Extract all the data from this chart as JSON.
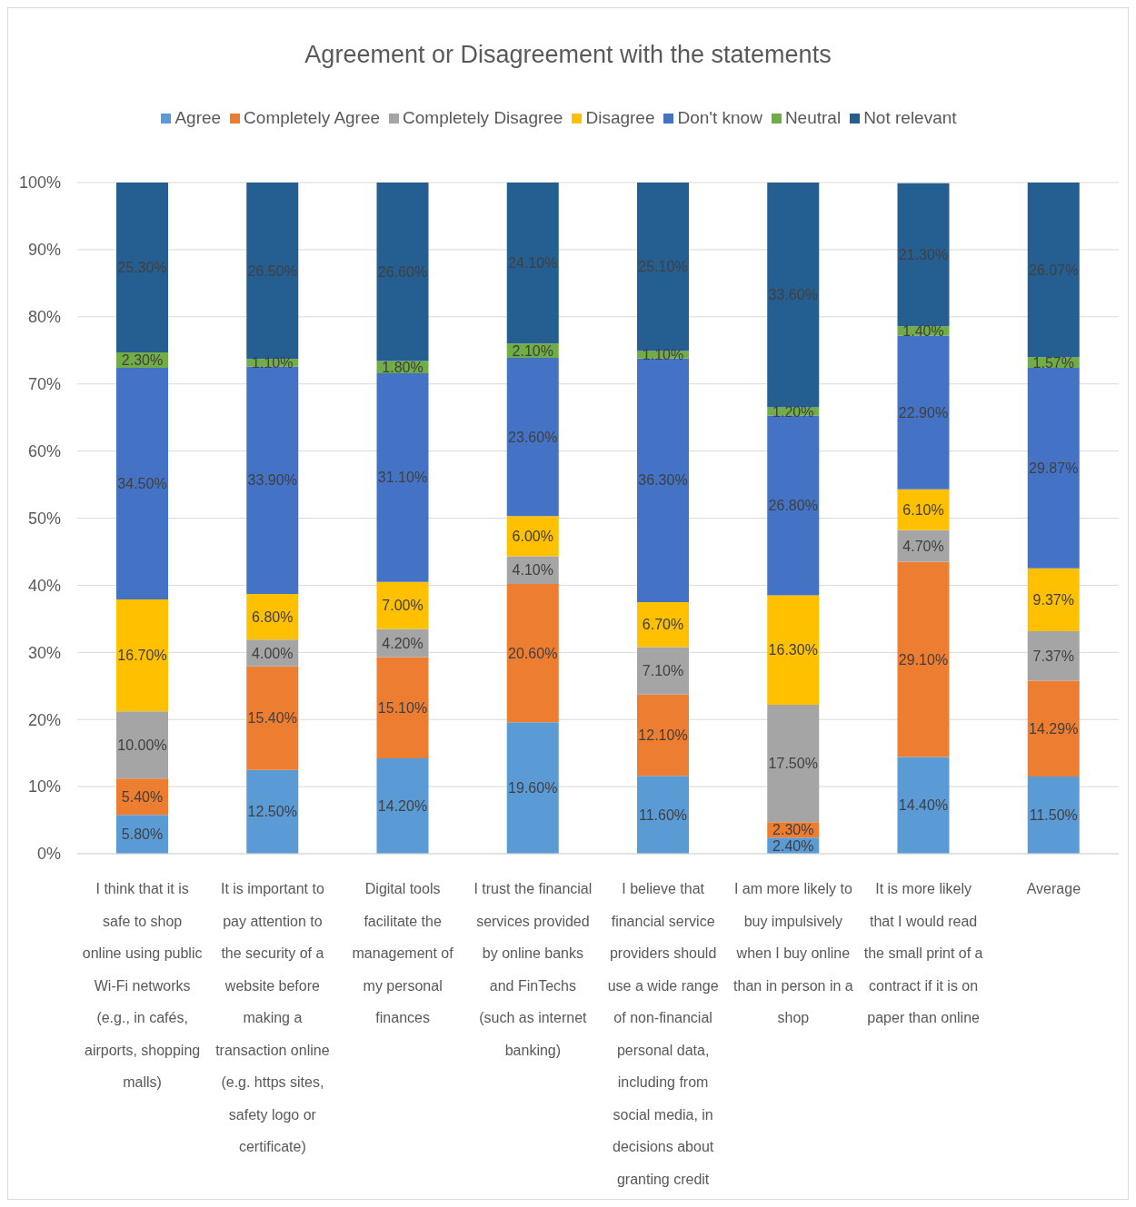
{
  "chart_data": {
    "type": "bar",
    "title": "Agreement or Disagreement with the statements",
    "categories": [
      "I think that it is safe to shop online using public Wi-Fi networks (e.g., in cafés, airports, shopping malls)",
      "It is important to pay attention to the security of a website before making a transaction online (e.g. https sites, safety logo or certificate)",
      "Digital tools facilitate the management of my personal finances",
      "I trust the financial services provided by online banks and FinTechs (such as internet banking)",
      "I believe that financial service providers should use a wide range of non-financial personal data, including from social media, in decisions about granting credit",
      "I am more likely to buy impulsively when I buy online than in person in a shop",
      "It is more likely that I would read the small print of a contract if it is on paper than online",
      "Average"
    ],
    "series": [
      {
        "name": "Agree",
        "color": "#5b9bd5",
        "values": [
          5.8,
          12.5,
          14.2,
          19.6,
          11.6,
          2.4,
          14.4,
          11.5
        ],
        "value_labels": [
          "5.80%",
          "12.50%",
          "14.20%",
          "19.60%",
          "11.60%",
          "2.40%",
          "14.40%",
          "11.50%"
        ]
      },
      {
        "name": "Completely Agree",
        "color": "#ed7d31",
        "values": [
          5.4,
          15.4,
          15.1,
          20.6,
          12.1,
          2.3,
          29.1,
          14.29
        ],
        "value_labels": [
          "5.40%",
          "15.40%",
          "15.10%",
          "20.60%",
          "12.10%",
          "2.30%",
          "29.10%",
          "14.29%"
        ]
      },
      {
        "name": "Completely Disagree",
        "color": "#a5a5a5",
        "values": [
          10.0,
          4.0,
          4.2,
          4.1,
          7.1,
          17.5,
          4.7,
          7.37
        ],
        "value_labels": [
          "10.00%",
          "4.00%",
          "4.20%",
          "4.10%",
          "7.10%",
          "17.50%",
          "4.70%",
          "7.37%"
        ]
      },
      {
        "name": "Disagree",
        "color": "#ffc000",
        "values": [
          16.7,
          6.8,
          7.0,
          6.0,
          6.7,
          16.3,
          6.1,
          9.37
        ],
        "value_labels": [
          "16.70%",
          "6.80%",
          "7.00%",
          "6.00%",
          "6.70%",
          "16.30%",
          "6.10%",
          "9.37%"
        ]
      },
      {
        "name": "Don't know",
        "color": "#4472c4",
        "values": [
          34.5,
          33.9,
          31.1,
          23.6,
          36.3,
          26.8,
          22.9,
          29.87
        ],
        "value_labels": [
          "34.50%",
          "33.90%",
          "31.10%",
          "23.60%",
          "36.30%",
          "26.80%",
          "22.90%",
          "29.87%"
        ]
      },
      {
        "name": "Neutral",
        "color": "#70ad47",
        "values": [
          2.3,
          1.1,
          1.8,
          2.1,
          1.1,
          1.2,
          1.4,
          1.57
        ],
        "value_labels": [
          "2.30%",
          "1.10%",
          "1.80%",
          "2.10%",
          "1.10%",
          "1.20%",
          "1.40%",
          "1.57%"
        ]
      },
      {
        "name": "Not relevant",
        "color": "#255e91",
        "values": [
          25.3,
          26.5,
          26.6,
          24.1,
          25.1,
          33.6,
          21.3,
          26.07
        ],
        "value_labels": [
          "25.30%",
          "26.50%",
          "26.60%",
          "24.10%",
          "25.10%",
          "33.60%",
          "21.30%",
          "26.07%"
        ]
      }
    ],
    "stacked": true,
    "ylim": [
      0,
      100
    ],
    "yticks": [
      {
        "value": 0,
        "label": "0%"
      },
      {
        "value": 10,
        "label": "10%"
      },
      {
        "value": 20,
        "label": "20%"
      },
      {
        "value": 30,
        "label": "30%"
      },
      {
        "value": 40,
        "label": "40%"
      },
      {
        "value": 50,
        "label": "50%"
      },
      {
        "value": 60,
        "label": "60%"
      },
      {
        "value": 70,
        "label": "70%"
      },
      {
        "value": 80,
        "label": "80%"
      },
      {
        "value": 90,
        "label": "90%"
      },
      {
        "value": 100,
        "label": "100%"
      }
    ],
    "grid": "y",
    "legend": "top"
  }
}
